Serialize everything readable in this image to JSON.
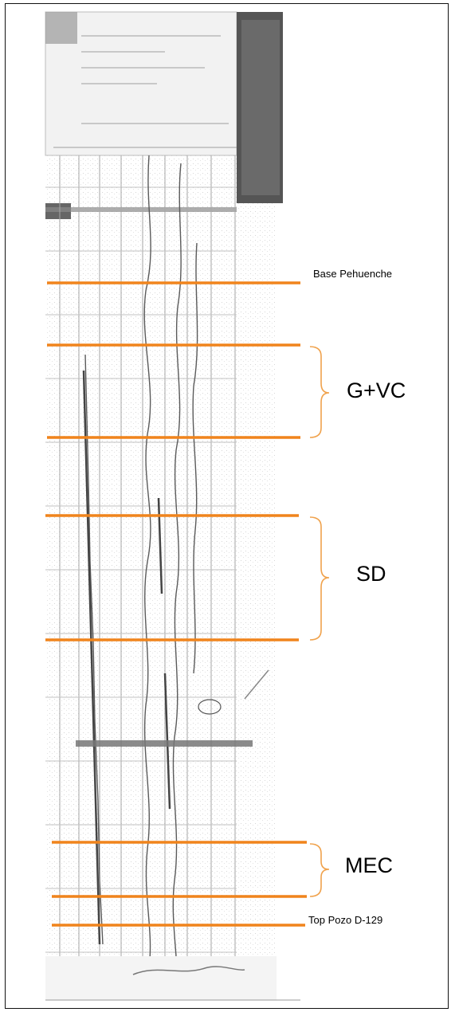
{
  "labels": {
    "base_pehuenche": "Base Pehuenche",
    "gvc": "G+VC",
    "sd": "SD",
    "mec": "MEC",
    "top_pozo": "Top Pozo D-129"
  },
  "colors": {
    "marker_line": "#F0841C",
    "bracket": "#F0A24C",
    "log_ink": "#6c6c6c",
    "shade_dark": "#555555"
  },
  "image_description": "Scanned well-log strip with orange horizontal formation-boundary markers and braces"
}
